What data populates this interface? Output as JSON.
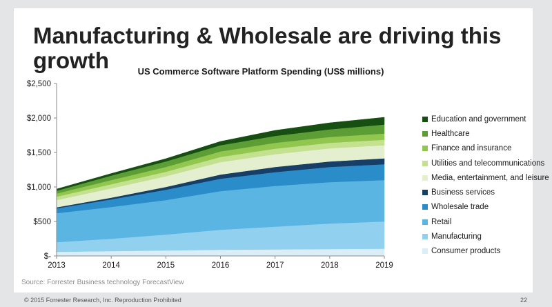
{
  "slide": {
    "title": "Manufacturing & Wholesale are driving this growth",
    "source": "Source: Forrester Business technology ForecastView",
    "footer": "© 2015 Forrester Research, Inc. Reproduction Prohibited",
    "page_number": "22"
  },
  "chart_data": {
    "type": "area",
    "stacked": true,
    "title": "US Commerce Software Platform Spending (US$ millions)",
    "xlabel": "",
    "ylabel": "",
    "x": [
      "2013",
      "2014",
      "2015",
      "2016",
      "2017",
      "2018",
      "2019"
    ],
    "ylim": [
      0,
      2500
    ],
    "yticks": [
      0,
      500,
      1000,
      1500,
      2000,
      2500
    ],
    "ytick_labels": [
      "$-",
      "$500",
      "$1,000",
      "$1,500",
      "$2,000",
      "$2,500"
    ],
    "grid": false,
    "legend_position": "right",
    "series": [
      {
        "name": "Consumer products",
        "color": "#dbeef8",
        "values": [
          60,
          70,
          80,
          90,
          95,
          100,
          105
        ]
      },
      {
        "name": "Manufacturing",
        "color": "#92d0ef",
        "values": [
          140,
          180,
          230,
          290,
          330,
          370,
          395
        ]
      },
      {
        "name": "Retail",
        "color": "#5bb5e2",
        "values": [
          420,
          460,
          500,
          560,
          590,
          600,
          600
        ]
      },
      {
        "name": "Wholesale trade",
        "color": "#2a8cc9",
        "values": [
          70,
          110,
          150,
          180,
          200,
          220,
          230
        ]
      },
      {
        "name": "Business services",
        "color": "#173e66",
        "values": [
          15,
          25,
          40,
          60,
          75,
          80,
          85
        ]
      },
      {
        "name": "Media, entertainment, and leisure",
        "color": "#e3efcf",
        "values": [
          105,
          135,
          155,
          180,
          185,
          190,
          190
        ]
      },
      {
        "name": "Utilities and telecommunications",
        "color": "#c3e18f",
        "values": [
          50,
          60,
          65,
          75,
          80,
          80,
          80
        ]
      },
      {
        "name": "Finance and insurance",
        "color": "#91c64f",
        "values": [
          45,
          60,
          70,
          80,
          85,
          85,
          90
        ]
      },
      {
        "name": "Healthcare",
        "color": "#5c9e35",
        "values": [
          40,
          65,
          80,
          90,
          100,
          110,
          130
        ]
      },
      {
        "name": "Education and government",
        "color": "#174f12",
        "values": [
          25,
          30,
          40,
          55,
          80,
          95,
          105
        ]
      }
    ]
  }
}
